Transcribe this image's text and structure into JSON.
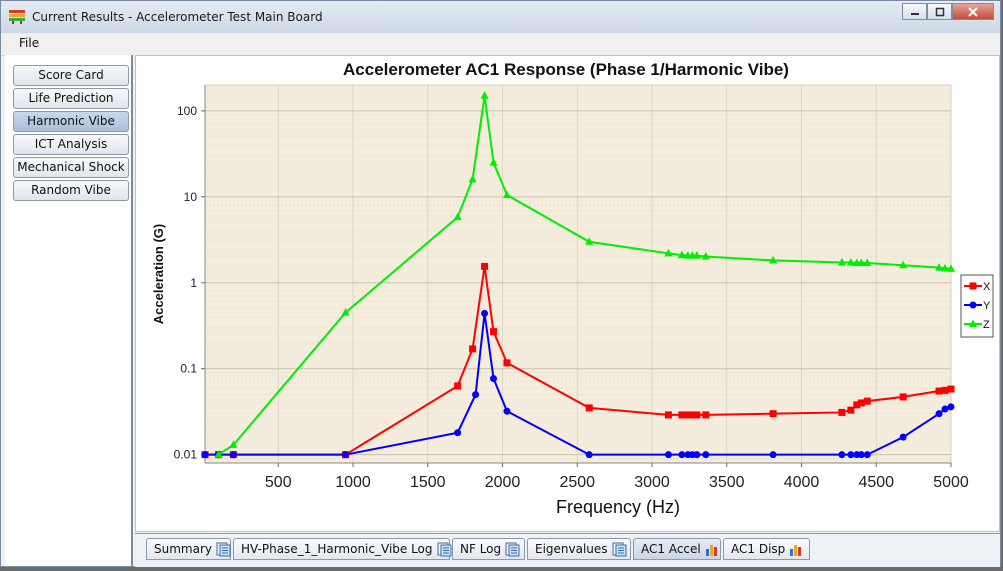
{
  "window": {
    "title": "Current Results - Accelerometer Test Main Board",
    "buttons": [
      "minimize-icon",
      "restore-icon",
      "close-icon"
    ]
  },
  "menu": {
    "file": "File"
  },
  "nav": {
    "items": [
      {
        "label": "Score Card",
        "active": false
      },
      {
        "label": "Life Prediction",
        "active": false
      },
      {
        "label": "Harmonic Vibe",
        "active": true
      },
      {
        "label": "ICT Analysis",
        "active": false
      },
      {
        "label": "Mechanical Shock",
        "active": false
      },
      {
        "label": "Random Vibe",
        "active": false
      }
    ]
  },
  "tabs": [
    {
      "label": "Summary",
      "icon": "document-icon",
      "active": false
    },
    {
      "label": "HV-Phase_1_Harmonic_Vibe Log",
      "icon": "document-icon",
      "active": false
    },
    {
      "label": "NF Log",
      "icon": "document-icon",
      "active": false
    },
    {
      "label": "Eigenvalues",
      "icon": "document-icon",
      "active": false
    },
    {
      "label": "AC1 Accel",
      "icon": "bar-chart-icon",
      "active": true
    },
    {
      "label": "AC1 Disp",
      "icon": "bar-chart-icon",
      "active": false
    }
  ],
  "colors": {
    "x": "#ff0000",
    "y": "#0000ff",
    "z": "#00ee00",
    "plot_bg": "#f4ecdc"
  },
  "chart_data": {
    "type": "line",
    "title": "Accelerometer AC1 Response (Phase 1/Harmonic Vibe)",
    "xlabel": "Frequency (Hz)",
    "ylabel": "Acceleration (G)",
    "xlim": [
      10,
      5000
    ],
    "ylim": [
      0.008,
      200
    ],
    "yscale": "log",
    "x_ticks": [
      500,
      1000,
      1500,
      2000,
      2500,
      3000,
      3500,
      4000,
      4500,
      5000
    ],
    "y_ticks": [
      0.01,
      0.1,
      1,
      10,
      100
    ],
    "y_tick_labels": [
      "0.01",
      "0.1",
      "1",
      "10",
      "100"
    ],
    "legend": "right",
    "grid": true,
    "series": [
      {
        "name": "X",
        "marker": "square",
        "x": [
          10,
          100,
          200,
          950,
          1700,
          1800,
          1880,
          1940,
          2030,
          2580,
          3110,
          3200,
          3240,
          3270,
          3300,
          3360,
          3810,
          4270,
          4330,
          4370,
          4400,
          4440,
          4680,
          4920,
          4960,
          5000
        ],
        "y": [
          0.01,
          0.01,
          0.01,
          0.01,
          0.063,
          0.17,
          1.55,
          0.27,
          0.117,
          0.035,
          0.029,
          0.029,
          0.029,
          0.029,
          0.029,
          0.029,
          0.03,
          0.031,
          0.033,
          0.038,
          0.04,
          0.042,
          0.047,
          0.055,
          0.056,
          0.058
        ]
      },
      {
        "name": "Y",
        "marker": "circle",
        "x": [
          10,
          100,
          200,
          950,
          1700,
          1820,
          1880,
          1940,
          2030,
          2580,
          3110,
          3200,
          3240,
          3270,
          3300,
          3360,
          3810,
          4270,
          4330,
          4370,
          4400,
          4440,
          4680,
          4920,
          4960,
          5000
        ],
        "y": [
          0.01,
          0.01,
          0.01,
          0.01,
          0.018,
          0.05,
          0.44,
          0.077,
          0.032,
          0.01,
          0.01,
          0.01,
          0.01,
          0.01,
          0.01,
          0.01,
          0.01,
          0.01,
          0.01,
          0.01,
          0.01,
          0.01,
          0.016,
          0.03,
          0.034,
          0.036
        ]
      },
      {
        "name": "Z",
        "marker": "triangle",
        "x": [
          100,
          200,
          950,
          1700,
          1800,
          1880,
          1940,
          2030,
          2580,
          3110,
          3200,
          3240,
          3270,
          3300,
          3360,
          3810,
          4270,
          4330,
          4370,
          4400,
          4440,
          4680,
          4920,
          4960,
          5000
        ],
        "y": [
          0.01,
          0.013,
          0.45,
          5.8,
          16,
          150,
          25,
          10.5,
          3.0,
          2.2,
          2.1,
          2.07,
          2.07,
          2.07,
          2.02,
          1.82,
          1.72,
          1.72,
          1.7,
          1.7,
          1.7,
          1.6,
          1.5,
          1.47,
          1.45
        ]
      }
    ]
  }
}
